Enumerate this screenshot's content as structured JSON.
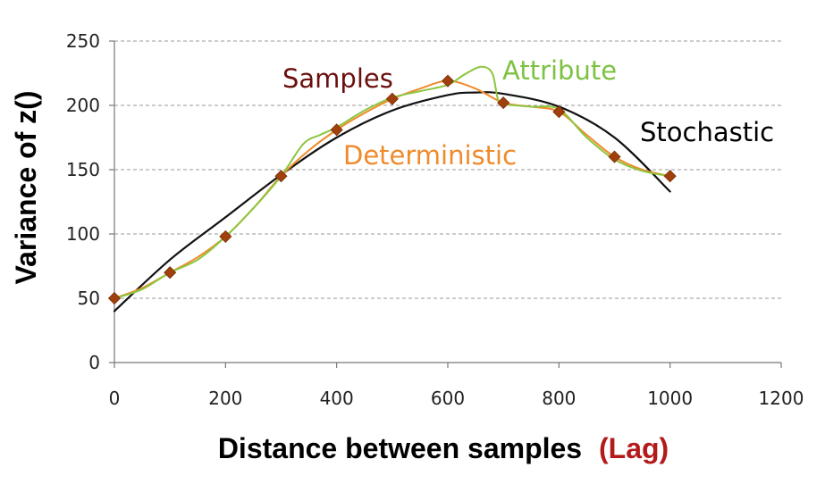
{
  "chart_data": {
    "type": "line",
    "xlabel": "Distance between samples",
    "xlabel_suffix": "(Lag)",
    "ylabel": "Variance of z()",
    "xlim": [
      0,
      1200
    ],
    "ylim": [
      0,
      250
    ],
    "x_ticks": [
      0,
      200,
      400,
      600,
      800,
      1000,
      1200
    ],
    "y_ticks": [
      0,
      50,
      100,
      150,
      200,
      250
    ],
    "grid": "horizontal-dashed",
    "series": [
      {
        "name": "Samples",
        "kind": "markers",
        "color": "#a0410d",
        "label_color": "#6b0f0f",
        "points": [
          [
            0,
            50
          ],
          [
            100,
            70
          ],
          [
            200,
            98
          ],
          [
            300,
            145
          ],
          [
            400,
            181
          ],
          [
            500,
            205
          ],
          [
            600,
            219
          ],
          [
            700,
            202
          ],
          [
            800,
            195
          ],
          [
            900,
            160
          ],
          [
            1000,
            145
          ]
        ]
      },
      {
        "name": "Deterministic",
        "kind": "line",
        "color": "#f08a2a",
        "label_color": "#f08a2a",
        "points": [
          [
            0,
            50
          ],
          [
            50,
            58
          ],
          [
            100,
            70
          ],
          [
            150,
            82
          ],
          [
            200,
            98
          ],
          [
            250,
            120
          ],
          [
            300,
            145
          ],
          [
            350,
            165
          ],
          [
            400,
            181
          ],
          [
            450,
            194
          ],
          [
            500,
            205
          ],
          [
            550,
            213
          ],
          [
            600,
            219
          ],
          [
            650,
            213
          ],
          [
            700,
            202
          ],
          [
            750,
            199
          ],
          [
            800,
            195
          ],
          [
            850,
            177
          ],
          [
            900,
            160
          ],
          [
            950,
            150
          ],
          [
            1000,
            145
          ]
        ]
      },
      {
        "name": "Attribute",
        "kind": "line",
        "color": "#8cc63f",
        "label_color": "#7dc242",
        "points": [
          [
            0,
            50
          ],
          [
            50,
            57
          ],
          [
            100,
            70
          ],
          [
            150,
            80
          ],
          [
            200,
            98
          ],
          [
            250,
            120
          ],
          [
            300,
            145
          ],
          [
            340,
            170
          ],
          [
            370,
            177
          ],
          [
            400,
            183
          ],
          [
            450,
            196
          ],
          [
            500,
            206
          ],
          [
            550,
            211
          ],
          [
            600,
            216
          ],
          [
            630,
            224
          ],
          [
            660,
            230
          ],
          [
            680,
            225
          ],
          [
            690,
            205
          ],
          [
            700,
            201
          ],
          [
            750,
            199
          ],
          [
            800,
            197
          ],
          [
            850,
            175
          ],
          [
            900,
            158
          ],
          [
            950,
            149
          ],
          [
            1000,
            145
          ]
        ]
      },
      {
        "name": "Stochastic",
        "kind": "line",
        "color": "#111111",
        "label_color": "#000000",
        "points": [
          [
            0,
            40
          ],
          [
            100,
            80
          ],
          [
            200,
            113
          ],
          [
            300,
            146
          ],
          [
            400,
            175
          ],
          [
            500,
            196
          ],
          [
            600,
            208
          ],
          [
            650,
            210
          ],
          [
            700,
            209
          ],
          [
            800,
            199
          ],
          [
            900,
            175
          ],
          [
            1000,
            133
          ]
        ]
      }
    ]
  }
}
